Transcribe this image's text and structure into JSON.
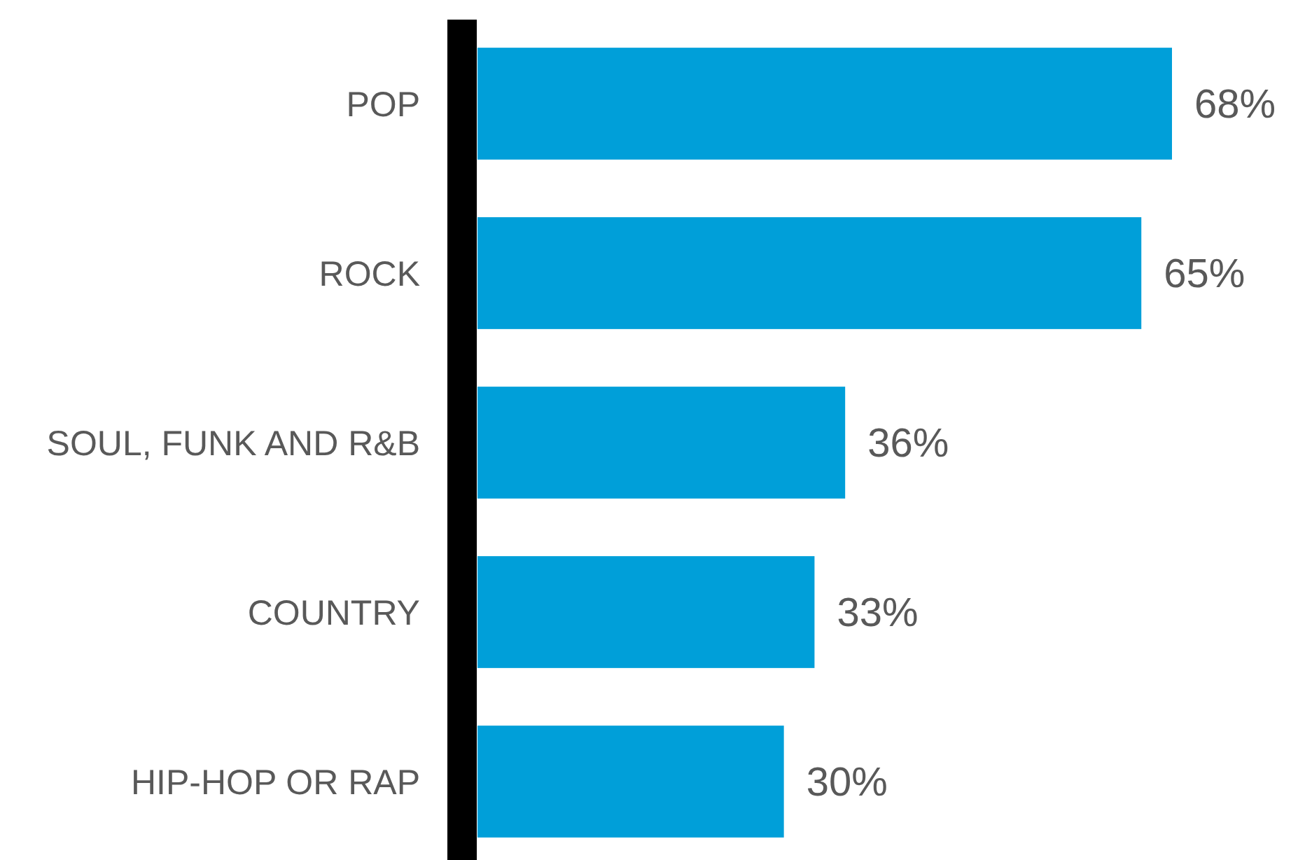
{
  "chart_data": {
    "type": "bar",
    "orientation": "horizontal",
    "categories": [
      "POP",
      "ROCK",
      "SOUL, FUNK AND R&B",
      "COUNTRY",
      "HIP-HOP OR RAP"
    ],
    "values": [
      68,
      65,
      36,
      33,
      30
    ],
    "value_labels": [
      "68%",
      "65%",
      "36%",
      "33%",
      "30%"
    ],
    "color": "#009fd9"
  }
}
